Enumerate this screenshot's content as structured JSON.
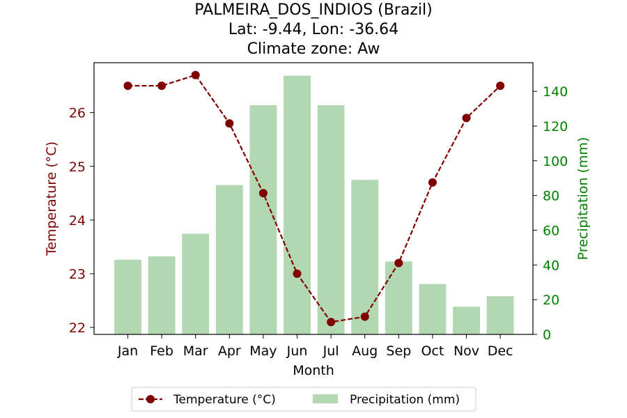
{
  "chart_data": {
    "type": "bar+line",
    "title_lines": [
      "PALMEIRA_DOS_INDIOS (Brazil)",
      "Lat: -9.44, Lon: -36.64",
      "Climate zone: Aw"
    ],
    "categories": [
      "Jan",
      "Feb",
      "Mar",
      "Apr",
      "May",
      "Jun",
      "Jul",
      "Aug",
      "Sep",
      "Oct",
      "Nov",
      "Dec"
    ],
    "xlabel": "Month",
    "temperature": {
      "name": "Temperature (°C)",
      "axis_label": "Temperature (°C)",
      "color": "#800000",
      "values": [
        26.5,
        26.5,
        26.7,
        25.8,
        24.5,
        23.0,
        22.1,
        22.2,
        23.2,
        24.7,
        25.9,
        26.5
      ],
      "ylim": [
        21.87,
        26.93
      ],
      "ticks": [
        22,
        23,
        24,
        25,
        26
      ]
    },
    "precipitation": {
      "name": "Precipitation (mm)",
      "axis_label": "Precipitation (mm)",
      "color": "#008000",
      "bar_color": "#b2d8b2",
      "values": [
        43,
        45,
        58,
        86,
        132,
        149,
        132,
        89,
        42,
        29,
        16,
        22
      ],
      "ylim": [
        0,
        156.5
      ],
      "ticks": [
        0,
        20,
        40,
        60,
        80,
        100,
        120,
        140
      ]
    },
    "legend_position": "bottom-center"
  }
}
